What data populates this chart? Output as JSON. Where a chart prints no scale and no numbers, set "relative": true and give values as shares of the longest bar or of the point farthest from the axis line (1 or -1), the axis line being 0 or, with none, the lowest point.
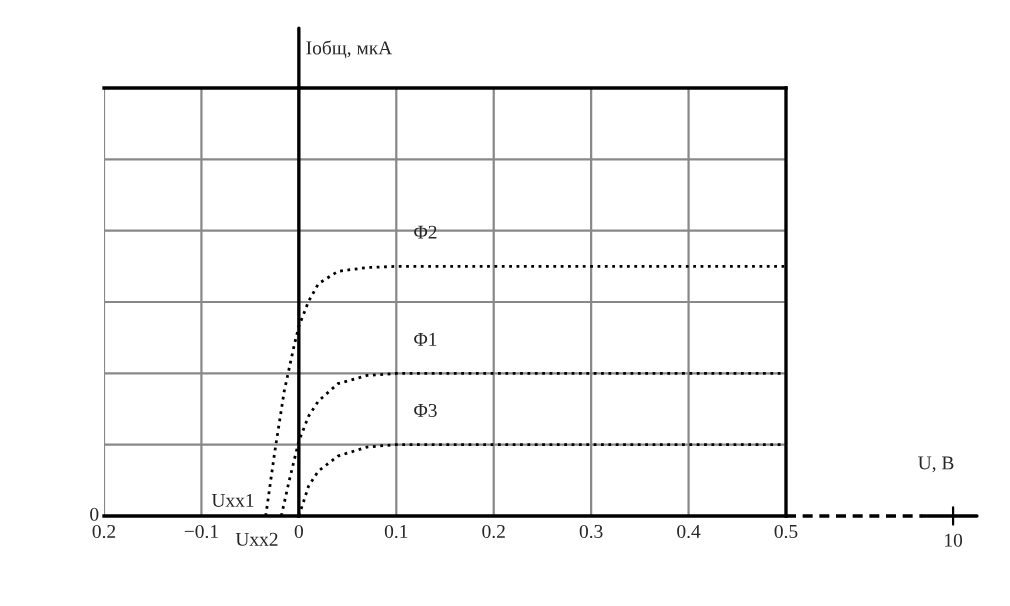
{
  "chart_data": {
    "type": "line",
    "relative": true,
    "xlim": [
      -0.2,
      0.5
    ],
    "xticks": [
      {
        "value": -0.2,
        "label": "0.2"
      },
      {
        "value": -0.1,
        "label": "−0.1"
      },
      {
        "value": 0,
        "label": "0"
      },
      0.1,
      0.2,
      0.3,
      0.4,
      0.5
    ],
    "grid": true,
    "line_style": "dotted",
    "marker": "none",
    "series": [
      {
        "name": "Φ2",
        "color": "#000000",
        "x": [
          -0.034,
          -0.025,
          -0.015,
          -0.005,
          0,
          0.01,
          0.02,
          0.04,
          0.07,
          0.1,
          0.5
        ],
        "values": [
          0,
          0.25,
          0.5,
          0.68,
          0.76,
          0.86,
          0.93,
          0.98,
          0.995,
          1,
          1
        ]
      },
      {
        "name": "Φ1",
        "color": "#000000",
        "x": [
          -0.018,
          -0.01,
          0,
          0.01,
          0.02,
          0.04,
          0.07,
          0.1,
          0.5
        ],
        "values": [
          0,
          0.14,
          0.3,
          0.4,
          0.46,
          0.53,
          0.563,
          0.571,
          0.571
        ]
      },
      {
        "name": "Φ3",
        "color": "#000000",
        "x": [
          0,
          0.01,
          0.02,
          0.04,
          0.07,
          0.1,
          0.5
        ],
        "values": [
          0,
          0.12,
          0.18,
          0.24,
          0.276,
          0.286,
          0.286
        ]
      }
    ],
    "annotations": [
      {
        "text": "Uxx1",
        "x": -0.034,
        "y": 0
      },
      {
        "text": "Uxx2",
        "x": -0.018,
        "y": 0
      },
      "0",
      "10",
      "U, B",
      "Iобщ, мкА"
    ]
  }
}
